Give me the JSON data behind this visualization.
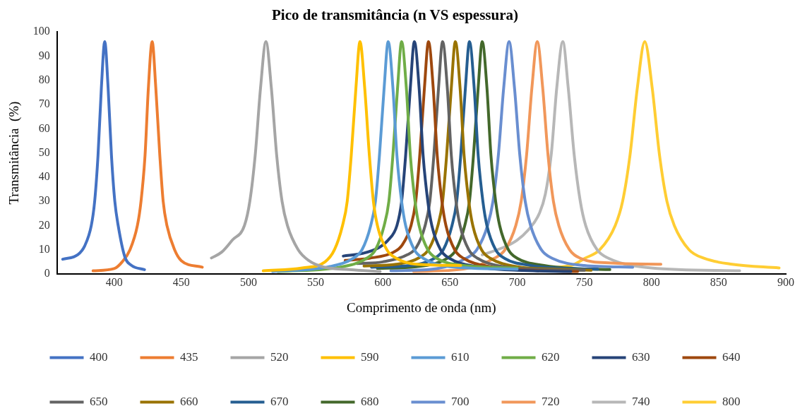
{
  "chart_data": {
    "type": "line",
    "title": "Pico de transmitância (n VS espessura)",
    "xlabel": "Comprimento de onda (nm)",
    "ylabel": "Transmitância  (%)",
    "xlim": [
      357.5,
      900
    ],
    "xticks": [
      400,
      450,
      500,
      550,
      600,
      650,
      700,
      750,
      800,
      850,
      900
    ],
    "ylim": [
      0,
      100
    ],
    "yticks": [
      0,
      10,
      20,
      30,
      40,
      50,
      60,
      70,
      80,
      90,
      100
    ],
    "legend": "bottom",
    "series": [
      {
        "name": "400",
        "color": "#4472c4",
        "x": [
          361.7,
          373,
          378,
          383,
          385.5,
          388,
          390.5,
          393,
          395.5,
          398,
          400.5,
          403,
          408,
          413,
          422.6
        ],
        "values": [
          6.1,
          8,
          11.5,
          20,
          30,
          49,
          77,
          96,
          77,
          49,
          30,
          20,
          7,
          3.5,
          1.8
        ]
      },
      {
        "name": "435",
        "color": "#ed7d31",
        "x": [
          384.3,
          400,
          406,
          411.8,
          417.3,
          420,
          423,
          425.5,
          428.3,
          431,
          434,
          436.5,
          439.3,
          445,
          450,
          465.6
        ],
        "values": [
          1.3,
          2.2,
          5,
          10,
          20,
          30,
          49,
          77,
          96,
          77,
          49,
          30,
          20,
          10,
          5.5,
          2.8
        ]
      },
      {
        "name": "520",
        "color": "#a5a5a5",
        "x": [
          472.4,
          480,
          488,
          497,
          501,
          505,
          509,
          513,
          517,
          521,
          525,
          529,
          537,
          545,
          555,
          575,
          598
        ],
        "values": [
          6.6,
          9,
          14,
          20,
          30,
          49,
          77,
          96,
          77,
          49,
          30,
          20,
          10,
          5.5,
          3,
          1.8,
          1
        ]
      },
      {
        "name": "590",
        "color": "#ffc000",
        "x": [
          511,
          540,
          557,
          564,
          570,
          573.5,
          576.5,
          580,
          583,
          586.5,
          590,
          593,
          596,
          603,
          610,
          625,
          658
        ],
        "values": [
          1.3,
          2.5,
          5,
          10,
          20,
          30,
          49,
          77,
          96,
          77,
          49,
          30,
          20,
          10,
          6.5,
          4,
          3.5
        ]
      },
      {
        "name": "610",
        "color": "#5b9bd5",
        "x": [
          518,
          560,
          578,
          584.5,
          591,
          594.5,
          597.5,
          601,
          604,
          607.5,
          610.5,
          614,
          617,
          623.5,
          630,
          650,
          700
        ],
        "values": [
          1,
          3,
          6.5,
          10,
          20,
          30,
          49,
          77,
          96,
          77,
          49,
          30,
          20,
          10,
          6.5,
          3,
          2
        ]
      },
      {
        "name": "620",
        "color": "#70ad47",
        "x": [
          522,
          570,
          588,
          594.5,
          601,
          604.5,
          607.5,
          611,
          614,
          617.5,
          620.5,
          624,
          627,
          633.5,
          640,
          660,
          700
        ],
        "values": [
          1,
          3,
          6.5,
          10,
          20,
          30,
          49,
          77,
          96,
          77,
          49,
          30,
          20,
          10,
          6.5,
          3.5,
          2.5
        ]
      },
      {
        "name": "630",
        "color": "#264478",
        "x": [
          570.6,
          585,
          597.5,
          604,
          610.5,
          614,
          617,
          620.5,
          623.5,
          627,
          630,
          633.5,
          636.5,
          643,
          649.5,
          670,
          700,
          740
        ],
        "values": [
          7.4,
          8.5,
          11,
          14,
          20,
          30,
          49,
          77,
          96,
          77,
          49,
          30,
          20,
          10,
          6.5,
          3,
          1.5,
          1
        ]
      },
      {
        "name": "640",
        "color": "#9e480e",
        "x": [
          572,
          590,
          608,
          614.5,
          621,
          624.5,
          627.5,
          631,
          634,
          637.5,
          640.5,
          644,
          647,
          653.5,
          660,
          680,
          710,
          745
        ],
        "values": [
          5.6,
          6.5,
          9,
          12,
          20,
          30,
          49,
          77,
          96,
          77,
          49,
          30,
          20,
          10,
          6.5,
          3,
          1.5,
          1
        ]
      },
      {
        "name": "650",
        "color": "#636363",
        "x": [
          581,
          600,
          618.5,
          625,
          631.5,
          635,
          638,
          641.5,
          644.5,
          648,
          651,
          654.5,
          657.5,
          664,
          670.5,
          690,
          720,
          750
        ],
        "values": [
          4.3,
          5,
          8,
          11,
          20,
          30,
          49,
          77,
          96,
          77,
          49,
          30,
          20,
          10,
          6.5,
          3,
          1.8,
          1.5
        ]
      },
      {
        "name": "660",
        "color": "#997300",
        "x": [
          586,
          610,
          628,
          634.5,
          641,
          644.5,
          647.5,
          651,
          654,
          657.5,
          660.5,
          664,
          667,
          673.5,
          680,
          700,
          730,
          755
        ],
        "values": [
          3.3,
          4,
          7,
          10.5,
          20,
          30,
          49,
          77,
          96,
          77,
          49,
          30,
          20,
          10,
          6.5,
          3,
          2,
          1.5
        ]
      },
      {
        "name": "670",
        "color": "#255e91",
        "x": [
          591.6,
          620,
          638.5,
          645,
          651.5,
          655,
          658,
          661.5,
          664.5,
          668,
          671,
          674.5,
          677.5,
          684,
          690.5,
          710,
          740,
          760
        ],
        "values": [
          2.8,
          3.5,
          6.5,
          10,
          20,
          30,
          49,
          77,
          96,
          77,
          49,
          30,
          20,
          10,
          6.5,
          3.5,
          2.2,
          2
        ]
      },
      {
        "name": "680",
        "color": "#43682b",
        "x": [
          596,
          625,
          648,
          654.5,
          661,
          664.5,
          667.5,
          671,
          674,
          677.5,
          680.5,
          684,
          687,
          693.5,
          700,
          720,
          745,
          769
        ],
        "values": [
          2.3,
          3,
          6.5,
          10,
          20,
          30,
          49,
          77,
          96,
          77,
          49,
          30,
          20,
          10,
          6.5,
          3.5,
          2.2,
          1.8
        ]
      },
      {
        "name": "700",
        "color": "#698ed0",
        "x": [
          606,
          640,
          662,
          670,
          678,
          682,
          686,
          690,
          694,
          698,
          702,
          706,
          710,
          718,
          726,
          750,
          786
        ],
        "values": [
          1.3,
          2.2,
          6.5,
          10,
          20,
          30,
          49,
          77,
          96,
          77,
          49,
          30,
          20,
          10,
          6.5,
          3.5,
          2.8
        ]
      },
      {
        "name": "720",
        "color": "#f1975a",
        "x": [
          623,
          660,
          683,
          691,
          699,
          703,
          707,
          711,
          715,
          719,
          723,
          727,
          731,
          739,
          747,
          770,
          807
        ],
        "values": [
          1,
          2,
          6.5,
          10,
          20,
          30,
          49,
          77,
          96,
          77,
          49,
          30,
          20,
          10,
          6.5,
          4.5,
          4
        ]
      },
      {
        "name": "740",
        "color": "#b7b7b7",
        "x": [
          674,
          690,
          700,
          708,
          716.5,
          721,
          725.5,
          729.5,
          734,
          738,
          742.5,
          747,
          751,
          759.5,
          768,
          800,
          865.6
        ],
        "values": [
          7.9,
          11,
          14,
          18,
          25,
          33,
          50,
          77,
          96,
          77,
          49,
          30,
          20,
          10,
          6.5,
          2.5,
          1.3
        ]
      },
      {
        "name": "800",
        "color": "#ffcd33",
        "x": [
          712,
          740,
          750.5,
          761.5,
          773,
          778.5,
          784,
          789.5,
          795,
          800.5,
          806,
          811.5,
          817,
          828,
          839,
          860,
          895
        ],
        "values": [
          2.3,
          3.5,
          6.5,
          10,
          20,
          30,
          49,
          77,
          96,
          77,
          49,
          30,
          20,
          10,
          6.5,
          4,
          2.5
        ]
      }
    ]
  }
}
